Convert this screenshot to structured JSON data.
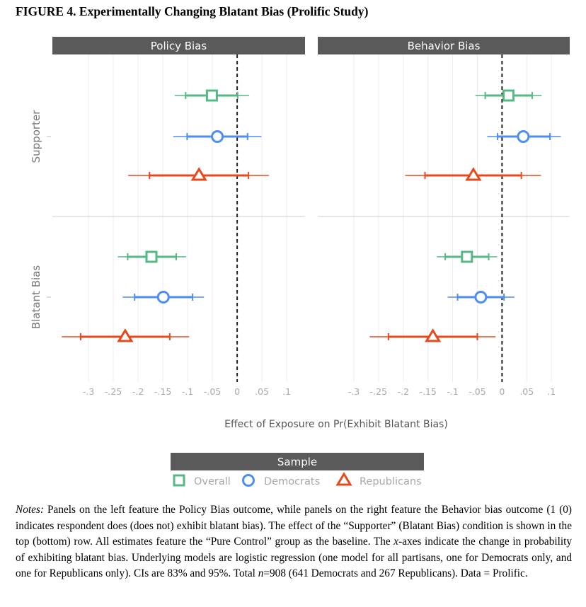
{
  "figure_title": "FIGURE 4. Experimentally Changing Blatant Bias (Prolific Study)",
  "chart_data": {
    "type": "dot-and-whisker",
    "xlabel": "Effect of Exposure on Pr(Exhibit Blatant Bias)",
    "xlim": [
      -0.373,
      0.137
    ],
    "xticks": [
      -0.3,
      -0.25,
      -0.2,
      -0.15,
      -0.1,
      -0.05,
      0,
      0.05,
      0.1
    ],
    "xtick_labels": [
      "-.3",
      "-.25",
      "-.2",
      "-.15",
      "-.1",
      "-.05",
      "0",
      ".05",
      ".1"
    ],
    "reference_line": 0,
    "grid": "vertical",
    "intervals": [
      "83%",
      "95%"
    ],
    "row_labels": [
      "Supporter",
      "Blatant Bias"
    ],
    "panels": [
      {
        "title": "Policy Bias",
        "rows": [
          {
            "row": "Supporter",
            "estimates": [
              {
                "sample": "Overall",
                "est": -0.051,
                "ci83": [
                  -0.104,
                  0.001
                ],
                "ci95": [
                  -0.126,
                  0.024
                ]
              },
              {
                "sample": "Democrats",
                "est": -0.04,
                "ci83": [
                  -0.101,
                  0.021
                ],
                "ci95": [
                  -0.129,
                  0.049
                ]
              },
              {
                "sample": "Republicans",
                "est": -0.077,
                "ci83": [
                  -0.177,
                  0.023
                ],
                "ci95": [
                  -0.22,
                  0.064
                ]
              }
            ]
          },
          {
            "row": "Blatant Bias",
            "estimates": [
              {
                "sample": "Overall",
                "est": -0.173,
                "ci83": [
                  -0.221,
                  -0.123
                ],
                "ci95": [
                  -0.241,
                  -0.103
                ]
              },
              {
                "sample": "Democrats",
                "est": -0.149,
                "ci83": [
                  -0.207,
                  -0.09
                ],
                "ci95": [
                  -0.231,
                  -0.067
                ]
              },
              {
                "sample": "Republicans",
                "est": -0.226,
                "ci83": [
                  -0.316,
                  -0.136
                ],
                "ci95": [
                  -0.354,
                  -0.097
                ]
              }
            ]
          }
        ]
      },
      {
        "title": "Behavior Bias",
        "rows": [
          {
            "row": "Supporter",
            "estimates": [
              {
                "sample": "Overall",
                "est": 0.013,
                "ci83": [
                  -0.034,
                  0.061
                ],
                "ci95": [
                  -0.054,
                  0.08
                ]
              },
              {
                "sample": "Democrats",
                "est": 0.043,
                "ci83": [
                  -0.009,
                  0.097
                ],
                "ci95": [
                  -0.03,
                  0.119
                ]
              },
              {
                "sample": "Republicans",
                "est": -0.058,
                "ci83": [
                  -0.156,
                  0.039
                ],
                "ci95": [
                  -0.196,
                  0.079
                ]
              }
            ]
          },
          {
            "row": "Blatant Bias",
            "estimates": [
              {
                "sample": "Overall",
                "est": -0.071,
                "ci83": [
                  -0.115,
                  -0.027
                ],
                "ci95": [
                  -0.132,
                  -0.01
                ]
              },
              {
                "sample": "Democrats",
                "est": -0.043,
                "ci83": [
                  -0.09,
                  0.004
                ],
                "ci95": [
                  -0.11,
                  0.025
                ]
              },
              {
                "sample": "Republicans",
                "est": -0.14,
                "ci83": [
                  -0.23,
                  -0.05
                ],
                "ci95": [
                  -0.268,
                  -0.013
                ]
              }
            ]
          }
        ]
      }
    ],
    "legend": {
      "title": "Sample",
      "placement": "bottom",
      "entries": [
        {
          "name": "Overall",
          "color": "#56b984",
          "shape": "square"
        },
        {
          "name": "Democrats",
          "color": "#4d8ef5",
          "shape": "circle"
        },
        {
          "name": "Republicans",
          "color": "#e64a1c",
          "shape": "triangle"
        }
      ]
    }
  },
  "notes": [
    {
      "text": "Notes:",
      "italic": true
    },
    {
      "text": "  Panels on the left feature the Policy Bias outcome, while panels on the right feature the Behavior bias outcome (1 (0) indicates respondent does (does not) exhibit blatant bias).  The effect of the “Supporter” (Blatant Bias) condition is shown in the top (bottom) row. All estimates feature the “Pure Control” group as the baseline. The ",
      "italic": false
    },
    {
      "text": "x",
      "italic": true
    },
    {
      "text": "-axes indicate the change in probability of exhibiting blatant bias. Underlying models are logistic regression (one model for all partisans, one for Democrats only, and one for Republicans only). CIs are 83% and 95%. Total ",
      "italic": false
    },
    {
      "text": "n",
      "italic": true
    },
    {
      "text": "=908 (641 Democrats and 267 Republicans). Data = Prolific.",
      "italic": false
    }
  ]
}
